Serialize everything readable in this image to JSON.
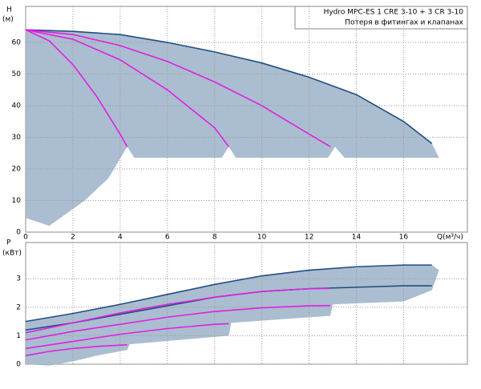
{
  "chart_data": [
    {
      "type": "line",
      "title": "Hydro MPC-ES 1 CRE 3-10  +  3 CR 3-10",
      "subtitle": "Потеря в фитингах и клапанах",
      "ylabel": "H",
      "yunit": "(м)",
      "xlabel": "Q(м³/ч)",
      "xlim": [
        0,
        18.7
      ],
      "ylim": [
        0,
        71.4
      ],
      "xticks": [
        0,
        2,
        4,
        6,
        8,
        10,
        12,
        14,
        16
      ],
      "yticks": [
        0,
        10,
        20,
        30,
        40,
        50,
        60
      ],
      "grid": true,
      "areas": [
        {
          "color": "#abbdd0",
          "x": [
            0,
            2,
            4,
            6,
            8,
            10,
            12,
            14,
            16,
            17.2,
            17.5,
            13.5,
            13.1,
            12.8,
            8.9,
            8.6,
            8.3,
            4.6,
            4.3,
            3.5,
            2.5,
            1,
            0
          ],
          "values": [
            64,
            63.5,
            62.5,
            60,
            57,
            53.5,
            49,
            43.5,
            35,
            28,
            23.5,
            23.5,
            27,
            23.5,
            23.5,
            27,
            23.5,
            23.5,
            27,
            17,
            10,
            2,
            4.5
          ]
        }
      ],
      "series": [
        {
          "color": "#1f4f82",
          "x": [
            0,
            2,
            4,
            6,
            8,
            10,
            12,
            14,
            16,
            17.2
          ],
          "values": [
            64,
            63.5,
            62.5,
            60,
            57,
            53.5,
            49,
            43.5,
            35,
            28
          ]
        },
        {
          "color": "#e020e0",
          "x": [
            0,
            2,
            4,
            6,
            8,
            10,
            12,
            12.9
          ],
          "values": [
            64,
            62.5,
            59,
            54,
            47.5,
            40,
            31,
            27
          ]
        },
        {
          "color": "#e020e0",
          "x": [
            0,
            2,
            4,
            6,
            8,
            8.6
          ],
          "values": [
            64,
            61,
            54.5,
            45,
            33,
            27
          ]
        },
        {
          "color": "#e020e0",
          "x": [
            0,
            1,
            2,
            3,
            4,
            4.3
          ],
          "values": [
            64,
            60.5,
            53,
            43,
            31,
            27
          ]
        }
      ]
    },
    {
      "type": "line",
      "ylabel": "P",
      "yunit": "(кВт)",
      "xlim": [
        0,
        18.7
      ],
      "ylim": [
        0,
        4.27
      ],
      "yticks": [
        0,
        1,
        2,
        3
      ],
      "grid": true,
      "areas": [
        {
          "color": "#abbdd0",
          "x": [
            0,
            2,
            4,
            6,
            8,
            10,
            12,
            14,
            16,
            17.2,
            17.5,
            17.2,
            16,
            13,
            12.9,
            8.7,
            8.6,
            4.4,
            4.3,
            3,
            2,
            1,
            0
          ],
          "values": [
            1.5,
            1.78,
            2.1,
            2.45,
            2.8,
            3.1,
            3.3,
            3.42,
            3.48,
            3.48,
            3.3,
            2.6,
            2.2,
            2.1,
            1.7,
            1.45,
            1.0,
            0.7,
            0.5,
            0.3,
            0.1,
            -0.05,
            0
          ]
        }
      ],
      "series": [
        {
          "color": "#1f4f82",
          "x": [
            0,
            2,
            4,
            6,
            8,
            10,
            12,
            14,
            16,
            17.2
          ],
          "values": [
            1.5,
            1.78,
            2.1,
            2.45,
            2.8,
            3.1,
            3.3,
            3.42,
            3.48,
            3.48
          ]
        },
        {
          "color": "#1f4f82",
          "x": [
            0,
            2,
            4,
            6,
            8,
            10,
            12,
            14,
            16,
            17.2
          ],
          "values": [
            1.2,
            1.45,
            1.75,
            2.05,
            2.35,
            2.55,
            2.65,
            2.7,
            2.75,
            2.75
          ]
        },
        {
          "color": "#e020e0",
          "x": [
            0,
            2,
            4,
            6,
            8,
            10,
            12,
            12.9
          ],
          "values": [
            1.1,
            1.45,
            1.8,
            2.1,
            2.35,
            2.55,
            2.65,
            2.66
          ]
        },
        {
          "color": "#e020e0",
          "x": [
            0,
            2,
            4,
            6,
            8,
            10,
            12,
            12.9
          ],
          "values": [
            0.85,
            1.15,
            1.4,
            1.65,
            1.85,
            1.98,
            2.05,
            2.06
          ]
        },
        {
          "color": "#e020e0",
          "x": [
            0,
            2,
            4,
            6,
            8,
            8.6
          ],
          "values": [
            0.55,
            0.8,
            1.05,
            1.25,
            1.4,
            1.42
          ]
        },
        {
          "color": "#e020e0",
          "x": [
            0,
            1,
            2,
            3,
            4,
            4.3
          ],
          "values": [
            0.3,
            0.45,
            0.55,
            0.62,
            0.67,
            0.68
          ]
        }
      ]
    }
  ]
}
